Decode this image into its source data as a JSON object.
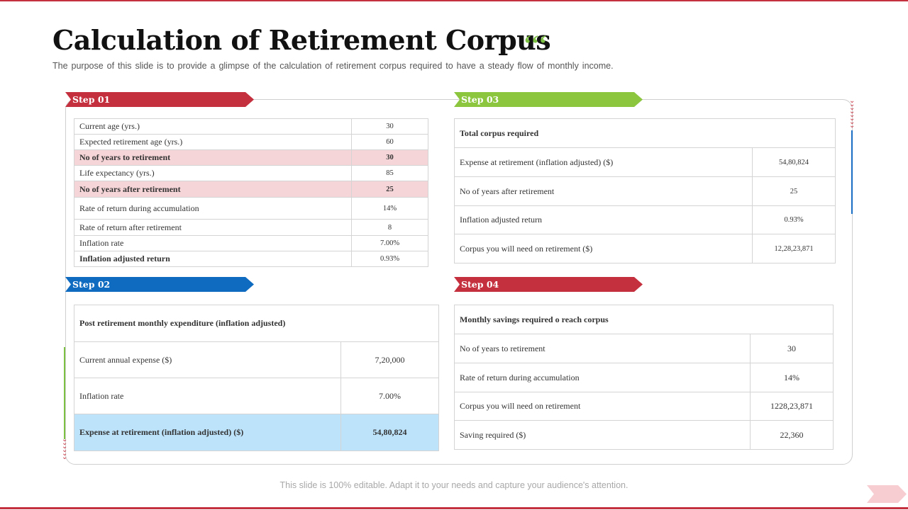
{
  "header": {
    "title": "Calculation of Retirement Corpus",
    "title_mark": "‘‘‘",
    "subtitle": "The purpose of this slide is to provide a glimpse of the calculation of retirement corpus required to have a steady flow of monthly income."
  },
  "colors": {
    "accent_red": "#c5303e",
    "accent_green": "#8cc63f",
    "accent_blue": "#0f6bc0",
    "highlight_pink": "#f6d5d8",
    "highlight_blue": "#bde3fa"
  },
  "step1": {
    "label": "Step 01",
    "rows": [
      {
        "label": "Current age (yrs.)",
        "value": "30"
      },
      {
        "label": "Expected retirement age (yrs.)",
        "value": "60"
      },
      {
        "label": "No of years to retirement",
        "value": "30"
      },
      {
        "label": "Life expectancy (yrs.)",
        "value": "85"
      },
      {
        "label": "No of years after retirement",
        "value": "25"
      },
      {
        "label": "Rate of return during accumulation",
        "value": "14%"
      },
      {
        "label": "Rate of return after retirement",
        "value": "8"
      },
      {
        "label": "Inflation rate",
        "value": "7.00%"
      },
      {
        "label": "Inflation adjusted return",
        "value": "0.93%"
      }
    ]
  },
  "step2": {
    "label": "Step 02",
    "heading": "Post retirement monthly expenditure (inflation adjusted)",
    "rows": [
      {
        "label": "Current annual expense ($)",
        "value": "7,20,000"
      },
      {
        "label": "Inflation rate",
        "value": "7.00%"
      },
      {
        "label": "Expense at retirement (inflation adjusted) ($)",
        "value": "54,80,824"
      }
    ]
  },
  "step3": {
    "label": "Step 03",
    "heading": "Total corpus required",
    "rows": [
      {
        "label": "Expense at retirement (inflation adjusted) ($)",
        "value": "54,80,824"
      },
      {
        "label": "No of years after retirement",
        "value": "25"
      },
      {
        "label": "Inflation adjusted return",
        "value": "0.93%"
      },
      {
        "label": "Corpus you will need on retirement ($)",
        "value": "12,28,23,871"
      }
    ]
  },
  "step4": {
    "label": "Step 04",
    "heading": "Monthly savings required o reach corpus",
    "rows": [
      {
        "label": "No of years to retirement",
        "value": "30"
      },
      {
        "label": "Rate of return during accumulation",
        "value": "14%"
      },
      {
        "label": "Corpus you will need on retirement",
        "value": "1228,23,871"
      },
      {
        "label": "Saving required ($)",
        "value": "22,360"
      }
    ]
  },
  "footer": {
    "text": "This slide is 100% editable. Adapt it to your needs and capture your audience's attention."
  }
}
